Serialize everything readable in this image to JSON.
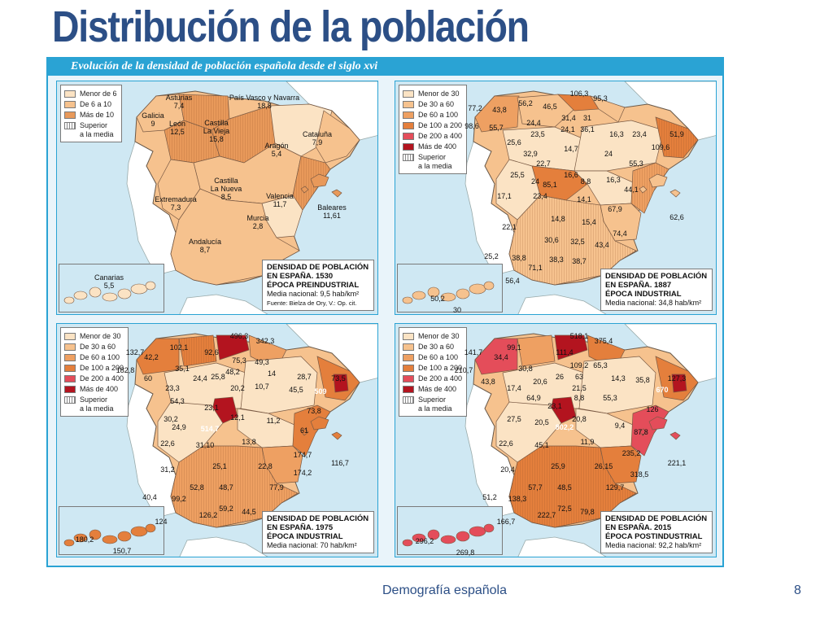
{
  "slide_title": "Distribución de la población",
  "figure_header": "Evolución de la densidad de población española desde el siglo xvi",
  "footer": {
    "subject": "Demografía española",
    "page": "8"
  },
  "colors": {
    "title": "#2c4f86",
    "frame": "#2aa3d4",
    "sea": "#cfe8f3",
    "c1": "#fbe3c4",
    "c2": "#f6c28e",
    "c3": "#eea062",
    "c4": "#e47f3c",
    "c5": "#e44d5a",
    "c6": "#b3141f"
  },
  "panels": [
    {
      "legend": [
        {
          "label": "Menor de 6",
          "color": "#fbe3c4"
        },
        {
          "label": "De 6 a 10",
          "color": "#f6c28e"
        },
        {
          "label": "Más de 10",
          "color": "#e8995a"
        },
        {
          "label": "Superior",
          "sub": "a la media",
          "hatch": true
        }
      ],
      "info": {
        "title1": "DENSIDAD DE POBLACIÓN",
        "title2": "EN ESPAÑA. 1530",
        "title3": "ÉPOCA PREINDUSTRIAL",
        "media": "Media nacional: 9,5 hab/km²",
        "source": "Fuente: Bielza de Ory, V.: Op. cit."
      },
      "labels": [
        {
          "text": "Asturias\n7,4"
        },
        {
          "text": "País Vasco y Navarra\n18,8"
        },
        {
          "text": "Galicia\n9"
        },
        {
          "text": "León\n12,5"
        },
        {
          "text": "Castilla\nLa Vieja\n15,8"
        },
        {
          "text": "Aragón\n5,4"
        },
        {
          "text": "Cataluña\n7,9"
        },
        {
          "text": "Castilla\nLa Nueva\n8,5"
        },
        {
          "text": "Extremadura\n7,3"
        },
        {
          "text": "Valencia\n11,7"
        },
        {
          "text": "Baleares\n11,61"
        },
        {
          "text": "Murcia\n2,8"
        },
        {
          "text": "Andalucía\n8,7"
        },
        {
          "text": "Canarias\n5,5"
        }
      ]
    },
    {
      "legend": [
        {
          "label": "Menor de 30",
          "color": "#fbe3c4"
        },
        {
          "label": "De 30 a 60",
          "color": "#f6c28e"
        },
        {
          "label": "De 60 a 100",
          "color": "#eea062"
        },
        {
          "label": "De 100 a 200",
          "color": "#e47f3c"
        },
        {
          "label": "De 200 a 400",
          "color": "#e44d5a"
        },
        {
          "label": "Más de 400",
          "color": "#b3141f"
        },
        {
          "label": "Superior",
          "sub": "a la media",
          "hatch": true
        }
      ],
      "info": {
        "title1": "DENSIDAD DE POBLACIÓN",
        "title2": "EN ESPAÑA. 1887",
        "title3": "ÉPOCA INDUSTRIAL",
        "media": "Media nacional: 34,8 hab/km²"
      },
      "labels": [
        {
          "text": "106,3"
        },
        {
          "text": "95,3"
        },
        {
          "text": "77,2"
        },
        {
          "text": "43,8"
        },
        {
          "text": "56,2"
        },
        {
          "text": "46,5"
        },
        {
          "text": "31,4"
        },
        {
          "text": "31"
        },
        {
          "text": "98,6"
        },
        {
          "text": "55,7"
        },
        {
          "text": "24,4"
        },
        {
          "text": "24,1"
        },
        {
          "text": "36,1"
        },
        {
          "text": "23,5"
        },
        {
          "text": "16,3"
        },
        {
          "text": "23,4"
        },
        {
          "text": "51,9"
        },
        {
          "text": "25,6"
        },
        {
          "text": "14,7"
        },
        {
          "text": "109,6"
        },
        {
          "text": "32,9"
        },
        {
          "text": "24"
        },
        {
          "text": "22,7"
        },
        {
          "text": "55,3"
        },
        {
          "text": "25,5"
        },
        {
          "text": "16,6"
        },
        {
          "text": "24"
        },
        {
          "text": "85,1"
        },
        {
          "text": "8,8"
        },
        {
          "text": "16,3"
        },
        {
          "text": "44,1"
        },
        {
          "text": "17,1"
        },
        {
          "text": "23,4"
        },
        {
          "text": "14,1"
        },
        {
          "text": "67,9"
        },
        {
          "text": "62,6"
        },
        {
          "text": "14,8"
        },
        {
          "text": "15,4"
        },
        {
          "text": "22,1"
        },
        {
          "text": "74,4"
        },
        {
          "text": "30,6"
        },
        {
          "text": "32,5"
        },
        {
          "text": "43,4"
        },
        {
          "text": "25,2"
        },
        {
          "text": "38,8"
        },
        {
          "text": "38,3"
        },
        {
          "text": "38,7"
        },
        {
          "text": "71,1"
        },
        {
          "text": "56,4"
        },
        {
          "text": "50,2"
        },
        {
          "text": "30"
        }
      ]
    },
    {
      "legend": [
        {
          "label": "Menor de 30",
          "color": "#fbe3c4"
        },
        {
          "label": "De 30 a 60",
          "color": "#f6c28e"
        },
        {
          "label": "De 60 a 100",
          "color": "#eea062"
        },
        {
          "label": "De 100 a 200",
          "color": "#e47f3c"
        },
        {
          "label": "De 200 a 400",
          "color": "#e44d5a"
        },
        {
          "label": "Más de 400",
          "color": "#b3141f"
        },
        {
          "label": "Superior",
          "sub": "a la media",
          "hatch": true
        }
      ],
      "info": {
        "title1": "DENSIDAD DE POBLACIÓN",
        "title2": "EN ESPAÑA. 1975",
        "title3": "ÉPOCA INDUSTRIAL",
        "media": "Media nacional: 70 hab/km²"
      },
      "labels": [
        {
          "text": "496,3"
        },
        {
          "text": "342,3"
        },
        {
          "text": "132,7"
        },
        {
          "text": "102,1"
        },
        {
          "text": "42,2"
        },
        {
          "text": "92,6"
        },
        {
          "text": "75,3"
        },
        {
          "text": "49,3"
        },
        {
          "text": "182,8"
        },
        {
          "text": "35,1"
        },
        {
          "text": "48,2"
        },
        {
          "text": "60"
        },
        {
          "text": "24,4"
        },
        {
          "text": "25,8"
        },
        {
          "text": "14"
        },
        {
          "text": "28,7"
        },
        {
          "text": "73,5"
        },
        {
          "text": "509"
        },
        {
          "text": "23,3"
        },
        {
          "text": "20,2"
        },
        {
          "text": "10,7"
        },
        {
          "text": "45,5"
        },
        {
          "text": "54,3"
        },
        {
          "text": "23,1"
        },
        {
          "text": "73,8"
        },
        {
          "text": "30,2"
        },
        {
          "text": "12,1"
        },
        {
          "text": "11,2"
        },
        {
          "text": "24,9"
        },
        {
          "text": "514,7"
        },
        {
          "text": "61"
        },
        {
          "text": "22,6"
        },
        {
          "text": "31,10"
        },
        {
          "text": "13,8"
        },
        {
          "text": "174,7"
        },
        {
          "text": "116,7"
        },
        {
          "text": "31,2"
        },
        {
          "text": "25,1"
        },
        {
          "text": "22,8"
        },
        {
          "text": "174,2"
        },
        {
          "text": "52,8"
        },
        {
          "text": "48,7"
        },
        {
          "text": "77,9"
        },
        {
          "text": "40,4"
        },
        {
          "text": "99,2"
        },
        {
          "text": "59,2"
        },
        {
          "text": "44,5"
        },
        {
          "text": "126,2"
        },
        {
          "text": "124"
        },
        {
          "text": "180,2"
        },
        {
          "text": "150,7"
        }
      ]
    },
    {
      "legend": [
        {
          "label": "Menor de 30",
          "color": "#fbe3c4"
        },
        {
          "label": "De 30 a 60",
          "color": "#f6c28e"
        },
        {
          "label": "De 60 a 100",
          "color": "#eea062"
        },
        {
          "label": "De 100 a 200",
          "color": "#e47f3c"
        },
        {
          "label": "De 200 a 400",
          "color": "#e44d5a"
        },
        {
          "label": "Más de 400",
          "color": "#b3141f"
        },
        {
          "label": "Superior",
          "sub": "a la media",
          "hatch": true
        }
      ],
      "info": {
        "title1": "DENSIDAD DE POBLACIÓN",
        "title2": "EN ESPAÑA. 2015",
        "title3": "ÉPOCA POSTINDUSTRIAL",
        "media": "Media nacional: 92,2 hab/km²"
      },
      "labels": [
        {
          "text": "518,1"
        },
        {
          "text": "375,4"
        },
        {
          "text": "141,7"
        },
        {
          "text": "99,1"
        },
        {
          "text": "111,4"
        },
        {
          "text": "34,4"
        },
        {
          "text": "109,2"
        },
        {
          "text": "65,3"
        },
        {
          "text": "210,7"
        },
        {
          "text": "30,8"
        },
        {
          "text": "63"
        },
        {
          "text": "43,8"
        },
        {
          "text": "20,6"
        },
        {
          "text": "26"
        },
        {
          "text": "14,3"
        },
        {
          "text": "35,8"
        },
        {
          "text": "127,3"
        },
        {
          "text": "670"
        },
        {
          "text": "17,4"
        },
        {
          "text": "21,5"
        },
        {
          "text": "64,9"
        },
        {
          "text": "8,8"
        },
        {
          "text": "55,3"
        },
        {
          "text": "23,1"
        },
        {
          "text": "126"
        },
        {
          "text": "27,5"
        },
        {
          "text": "20,8"
        },
        {
          "text": "20,5"
        },
        {
          "text": "802,2"
        },
        {
          "text": "9,4"
        },
        {
          "text": "87,8"
        },
        {
          "text": "22,6"
        },
        {
          "text": "45,1"
        },
        {
          "text": "11,9"
        },
        {
          "text": "235,2"
        },
        {
          "text": "221,1"
        },
        {
          "text": "20,4"
        },
        {
          "text": "25,9"
        },
        {
          "text": "26,15"
        },
        {
          "text": "318,5"
        },
        {
          "text": "57,7"
        },
        {
          "text": "48,5"
        },
        {
          "text": "129,7"
        },
        {
          "text": "51,2"
        },
        {
          "text": "138,3"
        },
        {
          "text": "72,5"
        },
        {
          "text": "79,8"
        },
        {
          "text": "222,7"
        },
        {
          "text": "166,7"
        },
        {
          "text": "296,2"
        },
        {
          "text": "269,8"
        }
      ]
    }
  ]
}
